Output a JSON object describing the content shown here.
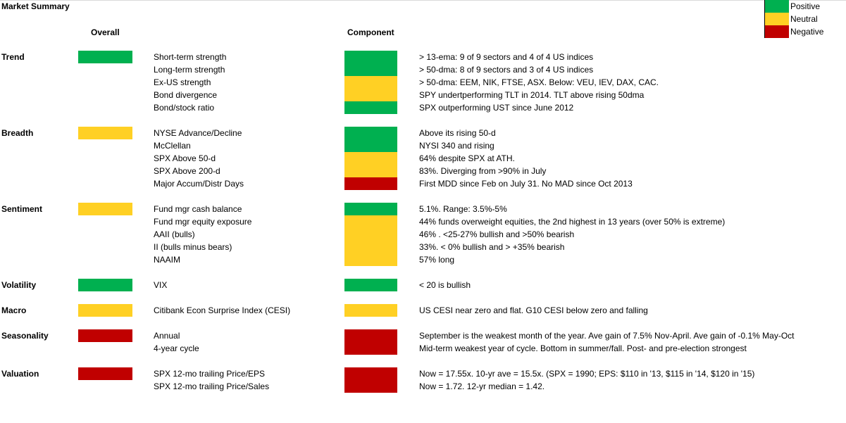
{
  "title": "Market Summary",
  "headers": {
    "overall": "Overall",
    "component": "Component"
  },
  "colors": {
    "positive": "#00b050",
    "neutral": "#ffd024",
    "negative": "#c00000"
  },
  "legend": [
    {
      "label": "Positive",
      "status": "positive"
    },
    {
      "label": "Neutral",
      "status": "neutral"
    },
    {
      "label": "Negative",
      "status": "negative"
    }
  ],
  "sections": [
    {
      "name": "Trend",
      "overall": "positive",
      "rows": [
        {
          "indicator": "Short-term strength",
          "comment": "> 13-ema: 9 of 9 sectors and 4 of 4 US indices"
        },
        {
          "indicator": "Long-term strength",
          "comment": "> 50-dma: 8 of 9 sectors and 3 of 4 US indices"
        },
        {
          "indicator": "Ex-US strength",
          "comment": "> 50-dma: EEM, NIK, FTSE, ASX. Below: VEU, IEV, DAX, CAC."
        },
        {
          "indicator": "Bond divergence",
          "comment": "SPY undertperforming TLT in 2014. TLT above rising 50dma"
        },
        {
          "indicator": "Bond/stock ratio",
          "comment": "SPX outperforming UST since June 2012"
        }
      ],
      "components": [
        {
          "status": "positive",
          "rows": 2
        },
        {
          "status": "neutral",
          "rows": 2
        },
        {
          "status": "positive",
          "rows": 1
        }
      ]
    },
    {
      "name": "Breadth",
      "overall": "neutral",
      "rows": [
        {
          "indicator": "NYSE Advance/Decline",
          "comment": "Above its rising 50-d"
        },
        {
          "indicator": "McClellan",
          "comment": "NYSI 340 and rising"
        },
        {
          "indicator": "SPX Above 50-d",
          "comment": "64% despite SPX at ATH."
        },
        {
          "indicator": "SPX Above 200-d",
          "comment": "83%. Diverging from >90% in July"
        },
        {
          "indicator": "Major Accum/Distr Days",
          "comment": "First MDD since Feb on July 31. No MAD since Oct 2013"
        }
      ],
      "components": [
        {
          "status": "positive",
          "rows": 2
        },
        {
          "status": "neutral",
          "rows": 2
        },
        {
          "status": "negative",
          "rows": 1
        }
      ]
    },
    {
      "name": "Sentiment",
      "overall": "neutral",
      "rows": [
        {
          "indicator": "Fund mgr cash balance",
          "comment": "5.1%. Range: 3.5%-5%"
        },
        {
          "indicator": "Fund mgr equity exposure",
          "comment": "44% funds overweight equities, the 2nd highest in 13 years (over 50% is extreme)"
        },
        {
          "indicator": "AAII (bulls)",
          "comment": "46% . <25-27% bullish and >50% bearish"
        },
        {
          "indicator": "II (bulls minus bears)",
          "comment": "33%. < 0% bullish and > +35% bearish"
        },
        {
          "indicator": "NAAIM",
          "comment": "57% long"
        }
      ],
      "components": [
        {
          "status": "positive",
          "rows": 1
        },
        {
          "status": "neutral",
          "rows": 4
        }
      ]
    },
    {
      "name": "Volatility",
      "overall": "positive",
      "rows": [
        {
          "indicator": "VIX",
          "comment": "< 20 is bullish"
        }
      ],
      "components": [
        {
          "status": "positive",
          "rows": 1
        }
      ]
    },
    {
      "name": "Macro",
      "overall": "neutral",
      "rows": [
        {
          "indicator": "Citibank Econ Surprise Index (CESI)",
          "comment": "US CESI near zero and flat.  G10 CESI below zero and falling"
        }
      ],
      "components": [
        {
          "status": "neutral",
          "rows": 1
        }
      ]
    },
    {
      "name": "Seasonality",
      "overall": "negative",
      "rows": [
        {
          "indicator": "Annual",
          "comment": "September is the weakest month of the year. Ave gain of 7.5% Nov-April. Ave gain of -0.1% May-Oct"
        },
        {
          "indicator": "4-year cycle",
          "comment": "Mid-term weakest year of cycle. Bottom in summer/fall. Post- and pre-election strongest"
        }
      ],
      "components": [
        {
          "status": "negative",
          "rows": 2
        }
      ]
    },
    {
      "name": "Valuation",
      "overall": "negative",
      "rows": [
        {
          "indicator": "SPX 12-mo trailing Price/EPS",
          "comment": "Now = 17.55x. 10-yr ave = 15.5x.  (SPX = 1990; EPS: $110 in '13, $115 in '14, $120 in '15)"
        },
        {
          "indicator": "SPX 12-mo trailing Price/Sales",
          "comment": "Now = 1.72. 12-yr median = 1.42."
        }
      ],
      "components": [
        {
          "status": "negative",
          "rows": 2
        }
      ]
    }
  ]
}
